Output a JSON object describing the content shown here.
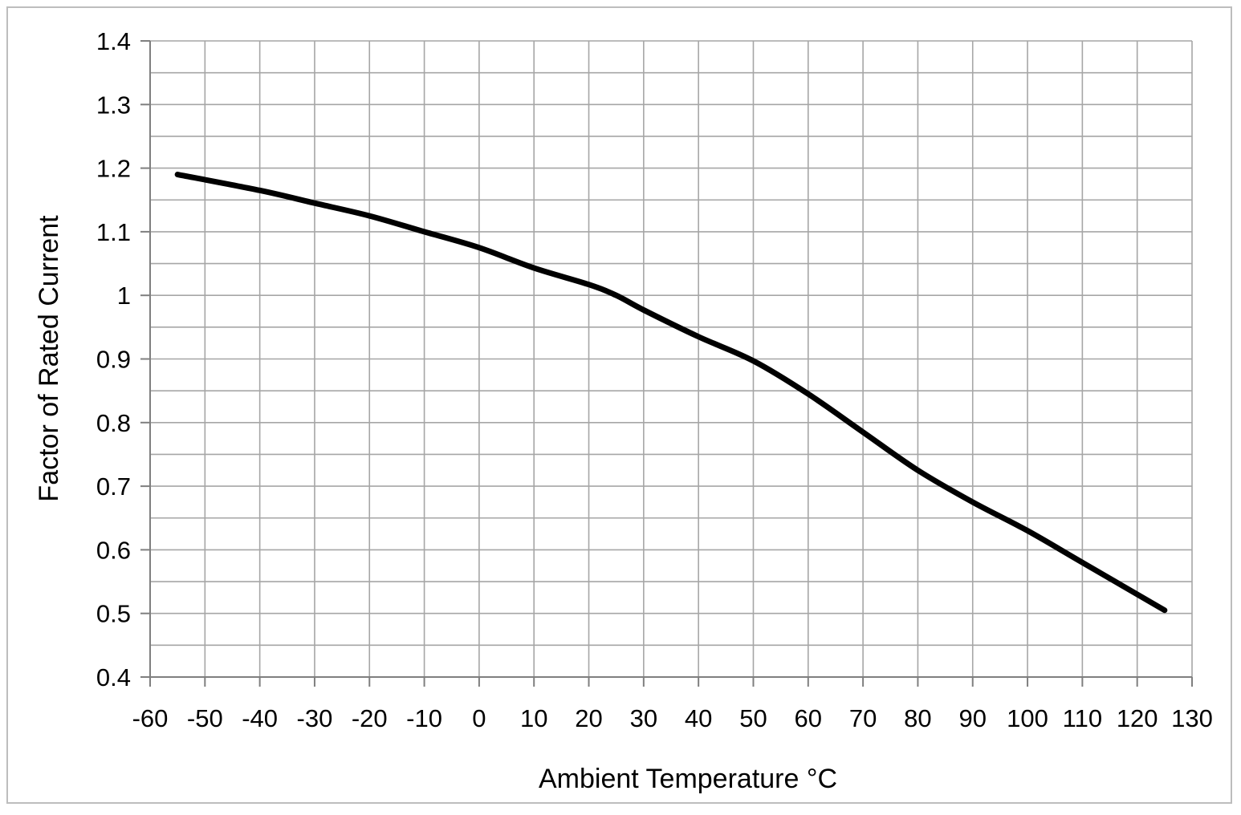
{
  "chart_data": {
    "type": "line",
    "title": "",
    "xlabel": "Ambient Temperature °C",
    "ylabel": "Factor of Rated Current",
    "xlim": [
      -60,
      130
    ],
    "ylim": [
      0.4,
      1.4
    ],
    "x_ticks": [
      -60,
      -50,
      -40,
      -30,
      -20,
      -10,
      0,
      10,
      20,
      30,
      40,
      50,
      60,
      70,
      80,
      90,
      100,
      110,
      120,
      130
    ],
    "x_tick_labels": [
      "-60",
      "-50",
      "-40",
      "-30",
      "-20",
      "-10",
      "0",
      "10",
      "20",
      "30",
      "40",
      "50",
      "60",
      "70",
      "80",
      "90",
      "100",
      "110",
      "120",
      "130"
    ],
    "y_ticks": [
      0.4,
      0.5,
      0.6,
      0.7,
      0.8,
      0.9,
      1.0,
      1.1,
      1.2,
      1.3,
      1.4
    ],
    "y_tick_labels": [
      "0.4",
      "0.5",
      "0.6",
      "0.7",
      "0.8",
      "0.9",
      "1",
      "1.1",
      "1.2",
      "1.3",
      "1.4"
    ],
    "grid": true,
    "minor_y_grid_step": 0.05,
    "series": [
      {
        "color": "#000000",
        "x": [
          -55,
          -40,
          -30,
          -20,
          -10,
          0,
          10,
          20,
          25,
          30,
          40,
          50,
          60,
          70,
          80,
          90,
          100,
          110,
          125
        ],
        "y": [
          1.19,
          1.165,
          1.145,
          1.125,
          1.1,
          1.075,
          1.043,
          1.017,
          1.0,
          0.977,
          0.935,
          0.897,
          0.845,
          0.785,
          0.725,
          0.675,
          0.63,
          0.58,
          0.505
        ]
      }
    ]
  }
}
